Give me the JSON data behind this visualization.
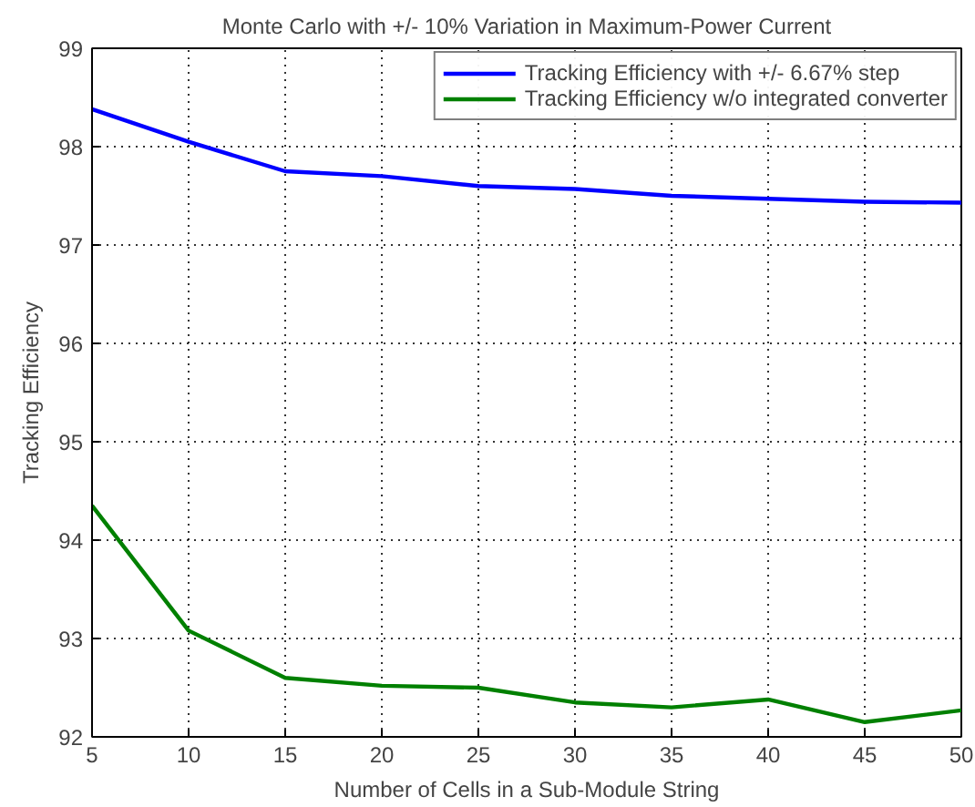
{
  "chart_data": {
    "type": "line",
    "title": "Monte Carlo with +/- 10% Variation in Maximum-Power Current",
    "xlabel": "Number of Cells in a Sub-Module String",
    "ylabel": "Tracking Efficiency",
    "x": [
      5,
      10,
      15,
      20,
      25,
      30,
      35,
      40,
      45,
      50
    ],
    "series": [
      {
        "name": "Tracking Efficiency with +/- 6.67% step",
        "color": "#0000ff",
        "values": [
          98.38,
          98.05,
          97.75,
          97.7,
          97.6,
          97.57,
          97.5,
          97.47,
          97.44,
          97.43
        ]
      },
      {
        "name": "Tracking Efficiency w/o integrated converter",
        "color": "#008000",
        "values": [
          94.35,
          93.08,
          92.6,
          92.52,
          92.5,
          92.35,
          92.3,
          92.38,
          92.15,
          92.27
        ]
      }
    ],
    "xlim": [
      5,
      50
    ],
    "ylim": [
      92,
      99
    ],
    "xticks": [
      5,
      10,
      15,
      20,
      25,
      30,
      35,
      40,
      45,
      50
    ],
    "yticks": [
      92,
      93,
      94,
      95,
      96,
      97,
      98,
      99
    ],
    "grid": true,
    "legend": "top right",
    "line_style": "solid"
  }
}
